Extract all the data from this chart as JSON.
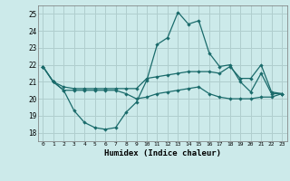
{
  "xlabel": "Humidex (Indice chaleur)",
  "background_color": "#cceaea",
  "grid_color": "#b0cece",
  "line_color": "#1a6b6b",
  "xlim": [
    -0.5,
    23.5
  ],
  "ylim": [
    17.5,
    25.5
  ],
  "yticks": [
    18,
    19,
    20,
    21,
    22,
    23,
    24,
    25
  ],
  "xticks": [
    0,
    1,
    2,
    3,
    4,
    5,
    6,
    7,
    8,
    9,
    10,
    11,
    12,
    13,
    14,
    15,
    16,
    17,
    18,
    19,
    20,
    21,
    22,
    23
  ],
  "line1_x": [
    0,
    1,
    2,
    3,
    4,
    5,
    6,
    7,
    8,
    9,
    10,
    11,
    12,
    13,
    14,
    15,
    16,
    17,
    18,
    19,
    20,
    21,
    22,
    23
  ],
  "line1_y": [
    21.9,
    21.0,
    20.5,
    19.3,
    18.6,
    18.3,
    18.2,
    18.3,
    19.2,
    19.8,
    21.1,
    23.2,
    23.6,
    25.1,
    24.4,
    24.6,
    22.7,
    21.9,
    22.0,
    21.0,
    20.4,
    21.5,
    20.3,
    20.3
  ],
  "line2_x": [
    0,
    1,
    2,
    3,
    4,
    5,
    6,
    7,
    8,
    9,
    10,
    11,
    12,
    13,
    14,
    15,
    16,
    17,
    18,
    19,
    20,
    21,
    22,
    23
  ],
  "line2_y": [
    21.9,
    21.0,
    20.7,
    20.6,
    20.6,
    20.6,
    20.6,
    20.6,
    20.6,
    20.6,
    21.2,
    21.3,
    21.4,
    21.5,
    21.6,
    21.6,
    21.6,
    21.5,
    21.9,
    21.2,
    21.2,
    22.0,
    20.4,
    20.3
  ],
  "line3_x": [
    0,
    1,
    2,
    3,
    4,
    5,
    6,
    7,
    8,
    9,
    10,
    11,
    12,
    13,
    14,
    15,
    16,
    17,
    18,
    19,
    20,
    21,
    22,
    23
  ],
  "line3_y": [
    21.9,
    21.0,
    20.5,
    20.5,
    20.5,
    20.5,
    20.5,
    20.5,
    20.3,
    20.0,
    20.1,
    20.3,
    20.4,
    20.5,
    20.6,
    20.7,
    20.3,
    20.1,
    20.0,
    20.0,
    20.0,
    20.1,
    20.1,
    20.3
  ]
}
